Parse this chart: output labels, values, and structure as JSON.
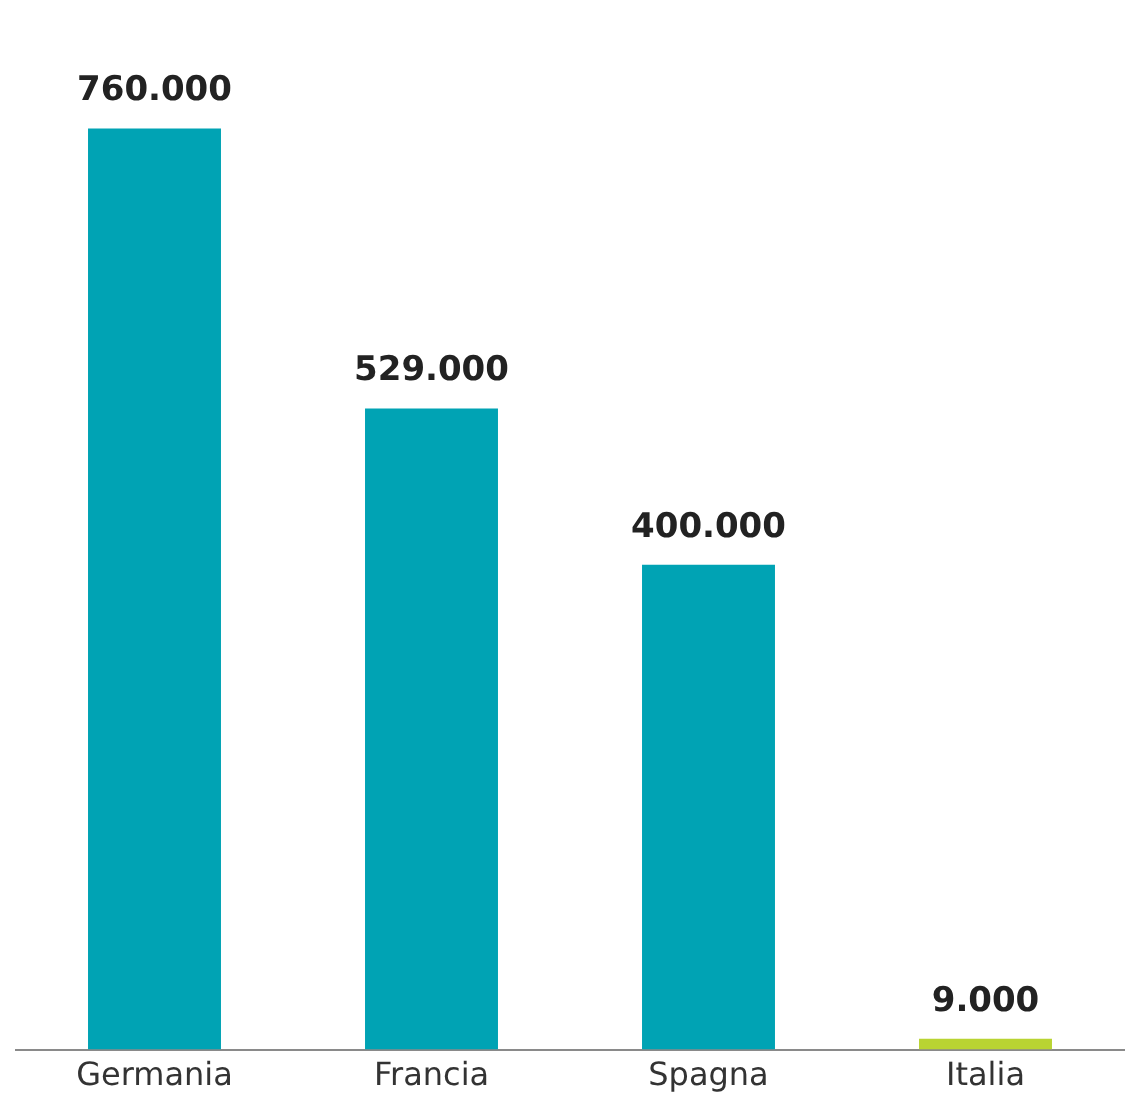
{
  "chart_data": {
    "type": "bar",
    "categories": [
      "Germania",
      "Francia",
      "Spagna",
      "Italia"
    ],
    "values": [
      760000,
      529000,
      400000,
      9000
    ],
    "colors": [
      "#00a3b4",
      "#00a3b4",
      "#00a3b4",
      "#b9d432"
    ],
    "value_labels": [
      "760.000",
      "529.000",
      "400.000",
      "9.000"
    ],
    "relative": false,
    "legend": false,
    "grid": false
  }
}
